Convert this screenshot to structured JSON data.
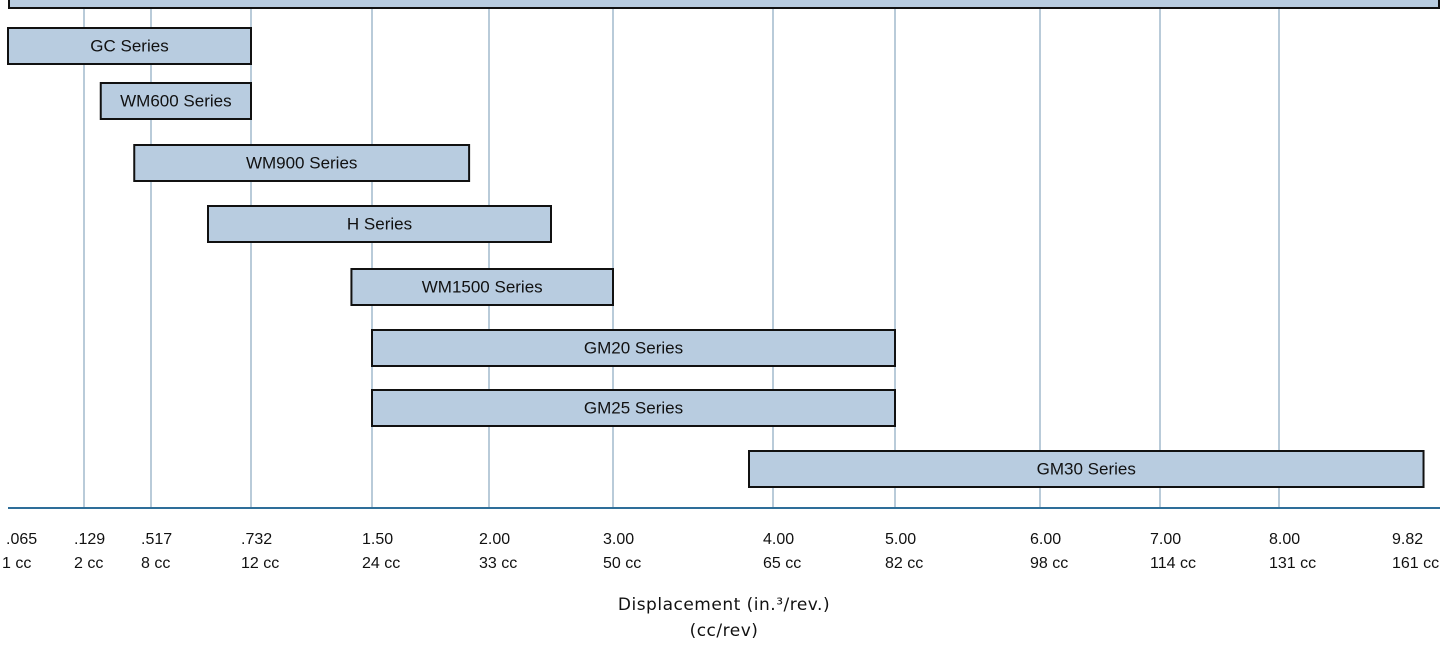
{
  "chart_data": {
    "type": "bar",
    "orientation": "horizontal-range",
    "title": "",
    "xlabel": "Displacement (in.³/rev.)",
    "xlabel_secondary": "(cc/rev)",
    "ylabel": "",
    "grid": true,
    "x_ticks": [
      {
        "in3": ".065",
        "cc": "1 cc"
      },
      {
        "in3": ".129",
        "cc": "2 cc"
      },
      {
        "in3": ".517",
        "cc": "8 cc"
      },
      {
        "in3": ".732",
        "cc": "12 cc"
      },
      {
        "in3": "1.50",
        "cc": "24 cc"
      },
      {
        "in3": "2.00",
        "cc": "33 cc"
      },
      {
        "in3": "3.00",
        "cc": "50 cc"
      },
      {
        "in3": "4.00",
        "cc": "65 cc"
      },
      {
        "in3": "5.00",
        "cc": "82 cc"
      },
      {
        "in3": "6.00",
        "cc": "98 cc"
      },
      {
        "in3": "7.00",
        "cc": "114 cc"
      },
      {
        "in3": "8.00",
        "cc": "131 cc"
      },
      {
        "in3": "9.82",
        "cc": "161 cc"
      }
    ],
    "top_bar": {
      "label": "",
      "start_tick": 0,
      "end_tick": 13
    },
    "series": [
      {
        "name": "GC Series",
        "start_tick": 0.0,
        "end_tick": 3.0
      },
      {
        "name": "WM600 Series",
        "start_tick": 1.25,
        "end_tick": 3.0
      },
      {
        "name": "WM900 Series",
        "start_tick": 1.75,
        "end_tick": 4.83
      },
      {
        "name": "H Series",
        "start_tick": 2.57,
        "end_tick": 5.5
      },
      {
        "name": "WM1500 Series",
        "start_tick": 3.83,
        "end_tick": 6.0
      },
      {
        "name": "GM20 Series",
        "start_tick": 4.0,
        "end_tick": 8.0
      },
      {
        "name": "GM25 Series",
        "start_tick": 4.0,
        "end_tick": 8.0
      },
      {
        "name": "GM30 Series",
        "start_tick": 6.85,
        "end_tick": 11.97
      }
    ],
    "colors": {
      "bar_fill": "#b8cce0",
      "bar_stroke": "#111111",
      "grid": "#b9cbd9",
      "axis": "#2e6e99"
    }
  }
}
